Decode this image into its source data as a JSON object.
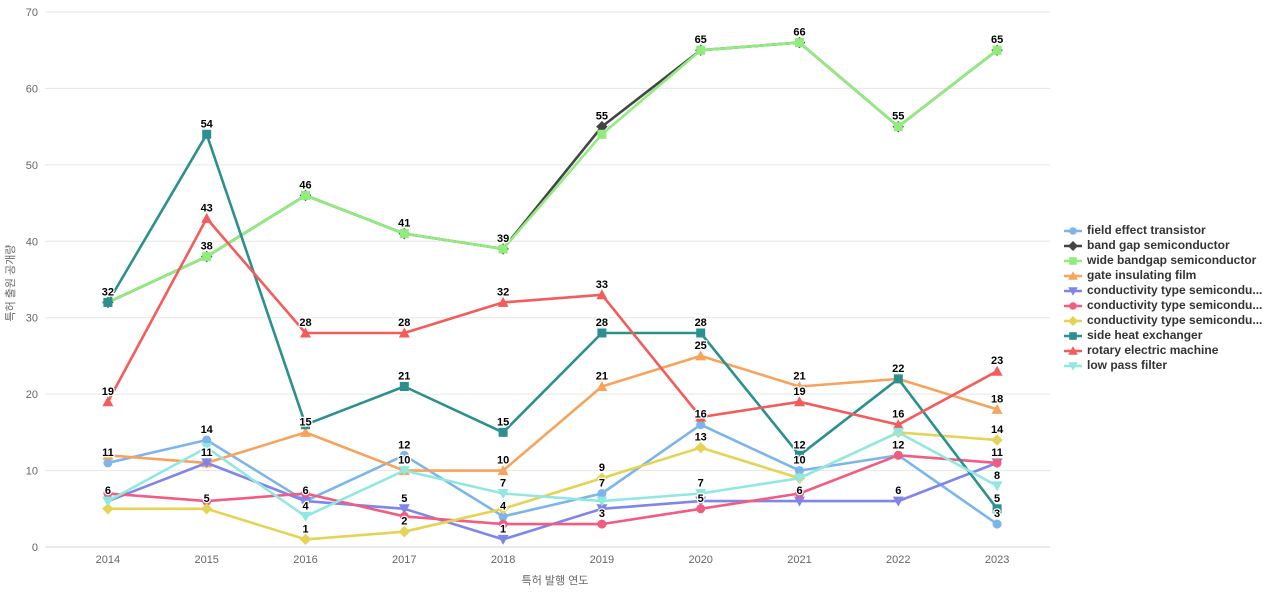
{
  "chart_data": {
    "type": "line",
    "x": [
      "2014",
      "2015",
      "2016",
      "2017",
      "2018",
      "2019",
      "2020",
      "2021",
      "2022",
      "2023"
    ],
    "xlabel": "특허 발행 연도",
    "ylabel": "특허 출원 공개량",
    "ylim": [
      0,
      70
    ],
    "yticks": [
      0,
      10,
      20,
      30,
      40,
      50,
      60,
      70
    ],
    "grid": true,
    "legend_position": "right",
    "colors": {
      "grid": "#e6e6e6",
      "axis_line": "#ccd6eb",
      "tick_text": "#666666",
      "legend_text": "#333333",
      "data_label": "#000000"
    },
    "series": [
      {
        "name": "field effect transistor",
        "color": "#7cb5ec",
        "marker": "circle",
        "values": [
          11,
          14,
          6,
          12,
          4,
          7,
          16,
          10,
          12,
          3
        ],
        "label_shown": [
          1,
          1,
          1,
          1,
          1,
          1,
          1,
          1,
          0,
          1
        ]
      },
      {
        "name": "band gap semiconductor",
        "color": "#434348",
        "marker": "diamond",
        "values": [
          32,
          38,
          46,
          41,
          39,
          55,
          65,
          66,
          55,
          65
        ],
        "label_shown": [
          0,
          0,
          0,
          0,
          0,
          1,
          0,
          0,
          0,
          0
        ]
      },
      {
        "name": "wide bandgap semiconductor",
        "color": "#90ed7d",
        "marker": "square",
        "values": [
          32,
          38,
          46,
          41,
          39,
          54,
          65,
          66,
          55,
          65
        ],
        "label_shown": [
          0,
          1,
          1,
          1,
          1,
          0,
          1,
          1,
          1,
          1
        ]
      },
      {
        "name": "gate insulating film",
        "color": "#f7a35c",
        "marker": "triangle",
        "values": [
          12,
          11,
          15,
          10,
          10,
          21,
          25,
          21,
          22,
          18
        ],
        "label_shown": [
          0,
          0,
          1,
          1,
          1,
          1,
          1,
          1,
          0,
          1
        ]
      },
      {
        "name": "conductivity type semicondu...",
        "color": "#8085e9",
        "marker": "triangle-down",
        "values": [
          6,
          11,
          6,
          5,
          1,
          5,
          6,
          6,
          6,
          11
        ],
        "label_shown": [
          0,
          1,
          0,
          1,
          1,
          0,
          0,
          1,
          1,
          0
        ]
      },
      {
        "name": "conductivity type semicondu...",
        "color": "#f15c80",
        "marker": "circle",
        "values": [
          7,
          6,
          7,
          4,
          3,
          3,
          5,
          7,
          12,
          11
        ],
        "label_shown": [
          0,
          0,
          0,
          0,
          0,
          1,
          1,
          0,
          1,
          1
        ]
      },
      {
        "name": "conductivity type semicondu...",
        "color": "#e4d354",
        "marker": "diamond",
        "values": [
          5,
          5,
          1,
          2,
          5,
          9,
          13,
          9,
          15,
          14
        ],
        "label_shown": [
          0,
          1,
          1,
          1,
          0,
          1,
          1,
          0,
          0,
          1
        ]
      },
      {
        "name": "side heat exchanger",
        "color": "#2b908f",
        "marker": "square",
        "values": [
          32,
          54,
          16,
          21,
          15,
          28,
          28,
          12,
          22,
          5
        ],
        "label_shown": [
          1,
          1,
          0,
          1,
          1,
          1,
          1,
          1,
          1,
          1
        ]
      },
      {
        "name": "rotary electric machine",
        "color": "#f45b5b",
        "marker": "triangle",
        "values": [
          19,
          43,
          28,
          28,
          32,
          33,
          17,
          19,
          16,
          23
        ],
        "label_shown": [
          1,
          1,
          1,
          1,
          1,
          1,
          0,
          1,
          1,
          1
        ]
      },
      {
        "name": "low pass filter",
        "color": "#91e8e1",
        "marker": "triangle-down",
        "values": [
          6,
          13,
          4,
          10,
          7,
          6,
          7,
          9,
          15,
          8
        ],
        "label_shown": [
          1,
          0,
          1,
          0,
          1,
          0,
          1,
          0,
          0,
          1
        ]
      }
    ]
  }
}
